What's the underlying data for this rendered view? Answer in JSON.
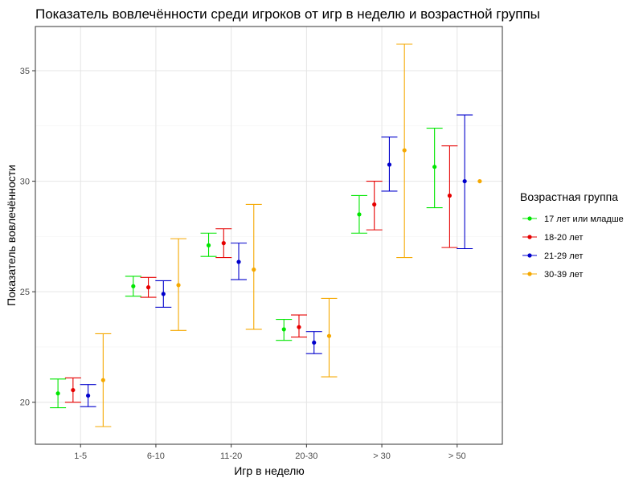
{
  "chart_data": {
    "type": "scatter",
    "title": "Показатель вовлечённости среди игроков от игр в неделю и возрастной группы",
    "xlabel": "Игр в неделю",
    "ylabel": "Показатель вовлечённости",
    "categories": [
      "1-5",
      "6-10",
      "11-20",
      "20-30",
      "> 30",
      "> 50"
    ],
    "ylim": [
      18.1,
      37.0
    ],
    "yticks": [
      20,
      25,
      30,
      35
    ],
    "grid": true,
    "legend": {
      "title": "Возрастная группа",
      "placement": "right"
    },
    "series": [
      {
        "name": "17 лет или младше",
        "color": "#00e600",
        "values": [
          20.4,
          25.25,
          27.1,
          23.3,
          28.5,
          30.65
        ],
        "lower": [
          19.75,
          24.8,
          26.6,
          22.8,
          27.65,
          28.8
        ],
        "upper": [
          21.05,
          25.7,
          27.65,
          23.75,
          29.35,
          32.4
        ]
      },
      {
        "name": "18-20 лет",
        "color": "#e60000",
        "values": [
          20.55,
          25.2,
          27.2,
          23.4,
          28.95,
          29.35
        ],
        "lower": [
          20.0,
          24.75,
          26.55,
          22.95,
          27.8,
          27.0
        ],
        "upper": [
          21.1,
          25.65,
          27.85,
          23.95,
          30.0,
          31.6
        ]
      },
      {
        "name": "21-29 лет",
        "color": "#0000cc",
        "values": [
          20.3,
          24.9,
          26.35,
          22.7,
          30.75,
          30.0
        ],
        "lower": [
          19.8,
          24.3,
          25.55,
          22.2,
          29.55,
          26.95
        ],
        "upper": [
          20.8,
          25.5,
          27.2,
          23.2,
          32.0,
          33.0
        ]
      },
      {
        "name": "30-39 лет",
        "color": "#f5a800",
        "values": [
          21.0,
          25.3,
          26.0,
          23.0,
          31.4,
          30.0
        ],
        "lower": [
          18.9,
          23.25,
          23.3,
          21.15,
          26.55,
          null
        ],
        "upper": [
          23.1,
          27.4,
          28.95,
          24.7,
          36.2,
          null
        ]
      }
    ]
  }
}
